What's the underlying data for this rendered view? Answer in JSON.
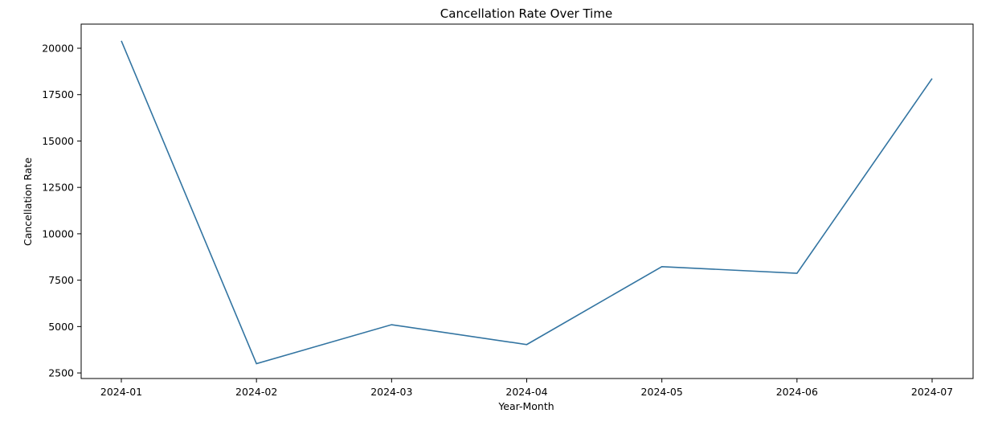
{
  "chart_data": {
    "type": "line",
    "title": "Cancellation Rate Over Time",
    "xlabel": "Year-Month",
    "ylabel": "Cancellation Rate",
    "categories": [
      "2024-01",
      "2024-02",
      "2024-03",
      "2024-04",
      "2024-05",
      "2024-06",
      "2024-07"
    ],
    "y_ticks": [
      "2500",
      "5000",
      "7500",
      "10000",
      "12500",
      "15000",
      "17500",
      "20000"
    ],
    "ylim": [
      2200,
      21300
    ],
    "grid": false,
    "series": [
      {
        "values": [
          20400,
          3000,
          5100,
          4030,
          8230,
          7870,
          18370
        ],
        "color": "#3274a1"
      }
    ]
  }
}
